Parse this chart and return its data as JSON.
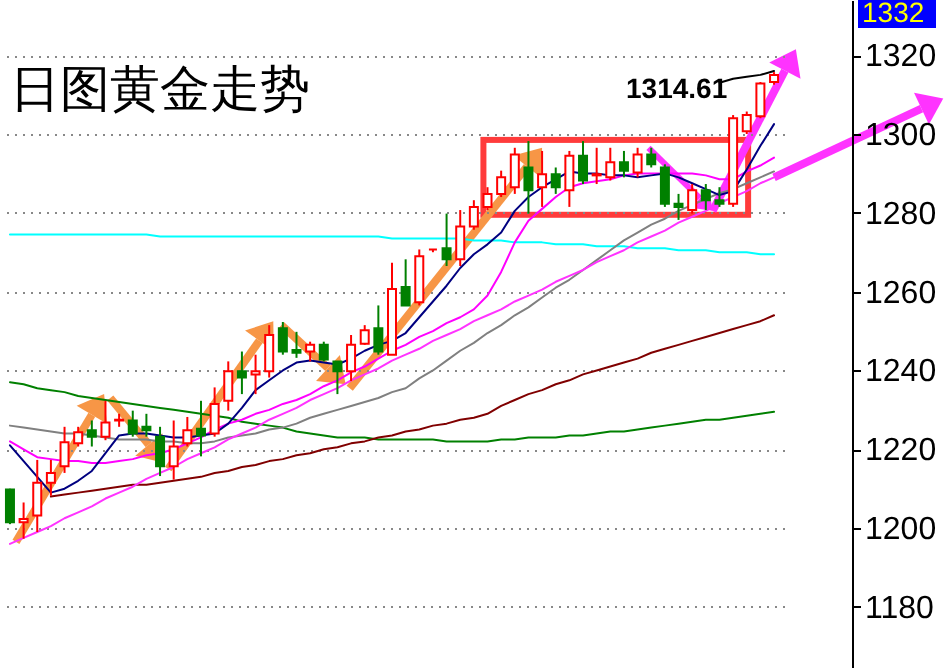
{
  "chart_data": {
    "type": "candlestick",
    "title": "日图黄金走势",
    "annotations": [
      "1314.61",
      "1332"
    ],
    "categories": [
      null,
      null,
      null,
      null,
      null,
      null,
      null,
      null,
      null,
      null,
      null,
      null,
      null,
      null,
      null,
      null,
      null,
      null,
      null,
      null,
      null,
      null,
      null,
      null,
      null,
      null,
      null,
      null,
      null,
      null,
      null,
      null,
      null,
      null,
      null,
      null,
      null,
      null,
      null,
      null,
      null,
      null,
      null,
      null,
      null,
      null,
      null,
      null,
      null,
      null,
      null,
      null,
      null,
      null,
      null,
      null,
      null
    ],
    "ohlc": [
      [
        1209.8,
        1210,
        1201,
        1201.5
      ],
      [
        1201.5,
        1206.5,
        1197.3,
        1202.3
      ],
      [
        1203.2,
        1217.3,
        1199,
        1211.5
      ],
      [
        1211.5,
        1217.3,
        1208.2,
        1214
      ],
      [
        1215.7,
        1225.7,
        1214,
        1221.8
      ],
      [
        1221.5,
        1225.7,
        1220.7,
        1224.3
      ],
      [
        1224.8,
        1227.3,
        1220.7,
        1223.2
      ],
      [
        1223.2,
        1232.3,
        1222.3,
        1226.8
      ],
      [
        1227.3,
        1229,
        1225.7,
        1227.5
      ],
      [
        1227.3,
        1229.8,
        1223.2,
        1224
      ],
      [
        1225.7,
        1229,
        1223.2,
        1224.8
      ],
      [
        1223.2,
        1225.7,
        1213.2,
        1215.7
      ],
      [
        1215.7,
        1227.3,
        1212.3,
        1220.7
      ],
      [
        1221.5,
        1228.2,
        1220.7,
        1224.8
      ],
      [
        1225.2,
        1232.3,
        1218.2,
        1223.5
      ],
      [
        1224,
        1235.7,
        1223.2,
        1231.5
      ],
      [
        1232.3,
        1242.3,
        1229.8,
        1239.8
      ],
      [
        1239.8,
        1244.8,
        1234,
        1238.2
      ],
      [
        1239,
        1244,
        1234,
        1239.8
      ],
      [
        1239.8,
        1251.5,
        1238.2,
        1249
      ],
      [
        1250.7,
        1252.3,
        1244,
        1244.8
      ],
      [
        1245.2,
        1249.8,
        1243.2,
        1244.5
      ],
      [
        1244.8,
        1247.3,
        1242.3,
        1246.5
      ],
      [
        1246.5,
        1247.3,
        1242.3,
        1242.8
      ],
      [
        1242.3,
        1242.3,
        1234,
        1239.8
      ],
      [
        1239.8,
        1249,
        1237.3,
        1246.5
      ],
      [
        1246.8,
        1251.5,
        1246.5,
        1250.2
      ],
      [
        1250.7,
        1256.5,
        1244,
        1244.8
      ],
      [
        1244,
        1267.3,
        1244,
        1260.7
      ],
      [
        1261.2,
        1268.2,
        1256.5,
        1256.5
      ],
      [
        1257.3,
        1270.7,
        1256.5,
        1269
      ],
      [
        1270.7,
        1270.7,
        1270,
        1270.7
      ],
      [
        1271,
        1279.8,
        1266.5,
        1268.2
      ],
      [
        1268.2,
        1280.7,
        1266.5,
        1276.5
      ],
      [
        1276.5,
        1283.2,
        1275.7,
        1281.5
      ],
      [
        1281.5,
        1286.5,
        1280.7,
        1284.8
      ],
      [
        1284.8,
        1290.7,
        1284,
        1289
      ],
      [
        1286.5,
        1296.5,
        1284.8,
        1294.8
      ],
      [
        1291.5,
        1298.2,
        1279.8,
        1285.7
      ],
      [
        1286.5,
        1295.7,
        1281.5,
        1289.8
      ],
      [
        1289.8,
        1291.5,
        1284.8,
        1286.5
      ],
      [
        1285.7,
        1295.7,
        1281.5,
        1294.5
      ],
      [
        1294.5,
        1298.2,
        1287.3,
        1288.2
      ],
      [
        1289.5,
        1296.5,
        1287.3,
        1289.8
      ],
      [
        1289,
        1296.5,
        1288.2,
        1292.8
      ],
      [
        1292.8,
        1295.7,
        1289,
        1290.7
      ],
      [
        1290.2,
        1296.5,
        1289,
        1294.8
      ],
      [
        1294.8,
        1296.5,
        1291.5,
        1292.3
      ],
      [
        1291.5,
        1292.3,
        1281.5,
        1282.3
      ],
      [
        1282.3,
        1284.8,
        1278.2,
        1281.5
      ],
      [
        1280.7,
        1287.3,
        1279.8,
        1285.7
      ],
      [
        1285.7,
        1287.3,
        1280.7,
        1283.2
      ],
      [
        1283.2,
        1286.5,
        1281.5,
        1282.3
      ],
      [
        1282.3,
        1304.8,
        1281.5,
        1304
      ],
      [
        1300.7,
        1305.7,
        1300,
        1304.8
      ],
      [
        1304.5,
        1313.2,
        1304,
        1312.8
      ],
      [
        1313.2,
        1315.7,
        1312.5,
        1315
      ]
    ],
    "colors": [
      "#008000",
      "#ff0000",
      "#ff0000",
      "#ff0000",
      "#ff0000",
      "#ff0000",
      "#008000",
      "#ff0000",
      "#ff0000",
      "#008000",
      "#008000",
      "#008000",
      "#ff0000",
      "#ff0000",
      "#008000",
      "#ff0000",
      "#ff0000",
      "#008000",
      "#ff0000",
      "#ff0000",
      "#008000",
      "#008000",
      "#ff0000",
      "#008000",
      "#008000",
      "#ff0000",
      "#ff0000",
      "#008000",
      "#ff0000",
      "#008000",
      "#ff0000",
      "#ff0000",
      "#008000",
      "#ff0000",
      "#ff0000",
      "#ff0000",
      "#ff0000",
      "#ff0000",
      "#008000",
      "#ff0000",
      "#008000",
      "#ff0000",
      "#008000",
      "#ff0000",
      "#ff0000",
      "#008000",
      "#ff0000",
      "#008000",
      "#008000",
      "#008000",
      "#ff0000",
      "#008000",
      "#008000",
      "#ff0000",
      "#ff0000",
      "#ff0000",
      "#ff0000"
    ],
    "series": [
      {
        "type": "line",
        "color": "#00ffff",
        "values": [
          1274.5,
          1274.5,
          1274.5,
          1274.5,
          1274.5,
          1274.5,
          1274.5,
          1274.5,
          1274.5,
          1274.5,
          1274.5,
          1274,
          1274,
          1274,
          1274,
          1274,
          1274,
          1274,
          1274,
          1274,
          1274,
          1274,
          1274,
          1274,
          1274,
          1274,
          1274,
          1274,
          1273.5,
          1273.5,
          1273.5,
          1273.5,
          1273.5,
          1273.5,
          1273,
          1273,
          1273,
          1272.5,
          1272.5,
          1272.5,
          1272,
          1272,
          1272,
          1271.5,
          1271.5,
          1271.5,
          1271,
          1271,
          1271,
          1270.5,
          1270.5,
          1270.5,
          1270,
          1270,
          1270,
          1269.5,
          1269.5
        ]
      },
      {
        "type": "line",
        "color": "#008000",
        "values": [
          1237,
          1236.5,
          1235.5,
          1235,
          1234.5,
          1233.5,
          1233,
          1232.5,
          1232,
          1231.5,
          1231,
          1230.5,
          1230,
          1229.5,
          1229,
          1228.5,
          1228,
          1227,
          1226.5,
          1226,
          1225.5,
          1224.5,
          1224,
          1223.5,
          1223,
          1223,
          1223,
          1222.5,
          1222.5,
          1222.5,
          1222.5,
          1222.5,
          1222,
          1222,
          1222,
          1222,
          1222.5,
          1222.5,
          1223,
          1223,
          1223,
          1223.5,
          1223.5,
          1224,
          1224.5,
          1224.5,
          1225,
          1225.5,
          1226,
          1226.5,
          1227,
          1227.5,
          1227.5,
          1228,
          1228.5,
          1229,
          1229.5
        ]
      },
      {
        "type": "line",
        "color": "#800000",
        "values": [
          null,
          null,
          null,
          1208,
          1208.5,
          1209,
          1209.5,
          1210,
          1210.5,
          1211,
          1211,
          1211.5,
          1212,
          1212.5,
          1213,
          1214,
          1214.5,
          1215.5,
          1216,
          1217,
          1217.5,
          1218.5,
          1219,
          1220,
          1220.5,
          1221.5,
          1222,
          1223,
          1223.5,
          1224.5,
          1225,
          1226,
          1226.5,
          1227.5,
          1228,
          1229,
          1231,
          1232.5,
          1234,
          1235,
          1236.5,
          1237.5,
          1239,
          1240,
          1241,
          1242,
          1243,
          1244.5,
          1245.5,
          1246.5,
          1247.5,
          1248.5,
          1249.5,
          1250.5,
          1251.5,
          1252.5,
          1254
        ]
      },
      {
        "type": "line",
        "color": "#808080",
        "values": [
          1226,
          1225.5,
          1225,
          1224.5,
          1224,
          1224,
          1223.5,
          1223,
          1222.5,
          1222.5,
          1222.5,
          1222,
          1222,
          1221.5,
          1221.5,
          1222,
          1223,
          1223.5,
          1224,
          1225,
          1225.5,
          1226.5,
          1228,
          1229,
          1230,
          1231,
          1232,
          1233,
          1234.5,
          1235.5,
          1238,
          1240,
          1242.5,
          1245,
          1247,
          1249.5,
          1251.5,
          1254,
          1256,
          1258.5,
          1261,
          1263,
          1265.5,
          1268,
          1270.5,
          1273,
          1275,
          1277,
          1278.5,
          1280.5,
          1282,
          1283.5,
          1285,
          1286,
          1287.5,
          1289,
          1290.5
        ]
      },
      {
        "type": "line",
        "color": "#ff00ff",
        "values": [
          1222,
          1220,
          1218,
          1217.5,
          1217,
          1217,
          1216.5,
          1216.5,
          1217,
          1217.5,
          1218.5,
          1219,
          1220,
          1221.5,
          1223,
          1225,
          1226.5,
          1227.5,
          1229,
          1230,
          1231.5,
          1232.5,
          1234,
          1236,
          1237.5,
          1239.5,
          1241,
          1243,
          1245,
          1246.5,
          1248.5,
          1250,
          1252,
          1253.5,
          1255.5,
          1259,
          1265,
          1272.5,
          1278,
          1281,
          1284,
          1286.5,
          1287.5,
          1288,
          1288.5,
          1289.5,
          1290,
          1290,
          1290,
          1290,
          1290,
          1289.5,
          1288.5,
          1288.5,
          1290.5,
          1292,
          1294
        ]
      },
      {
        "type": "line",
        "color": "#000080",
        "values": [
          1221,
          1217,
          1213,
          1209,
          1210,
          1212,
          1214.5,
          1219,
          1223.5,
          1224,
          1224,
          1223.5,
          1223,
          1223,
          1223.5,
          1224,
          1226.5,
          1230.5,
          1235,
          1237.5,
          1240,
          1242,
          1242.5,
          1242,
          1241.5,
          1243,
          1245,
          1246.5,
          1247.5,
          1249.5,
          1253.5,
          1257.5,
          1261.5,
          1266,
          1269.5,
          1272,
          1275,
          1280.5,
          1284,
          1286.5,
          1288.5,
          1290.5,
          1290,
          1290,
          1289.5,
          1289.5,
          1289,
          1289.5,
          1290,
          1289,
          1287.5,
          1286,
          1284.5,
          1285.5,
          1291,
          1297,
          1302.5
        ]
      },
      {
        "type": "line",
        "color": "#ff33ff",
        "values": [
          1196,
          1197.5,
          1199,
          1200.5,
          1202.5,
          1204,
          1205.5,
          1207.5,
          1209,
          1210.5,
          1212.5,
          1214,
          1215.5,
          1217.5,
          1219,
          1220.5,
          1222.5,
          1224,
          1225.5,
          1227.5,
          1229,
          1230.5,
          1232.5,
          1234,
          1235.5,
          1237.5,
          1239,
          1240.5,
          1242.5,
          1244,
          1245.5,
          1247.5,
          1249,
          1250.5,
          1252.5,
          1254,
          1255.5,
          1257.5,
          1259,
          1260.5,
          1262.5,
          1264,
          1265.5,
          1267.5,
          1269,
          1270.5,
          1272.5,
          1274,
          1275.5,
          1277.5,
          1279,
          1280.5,
          1282.5,
          1284,
          1285.5,
          1287.5,
          1289
        ]
      },
      {
        "type": "line",
        "color": "#000000",
        "values": [
          null,
          null,
          null,
          null,
          null,
          null,
          null,
          null,
          null,
          null,
          null,
          null,
          null,
          null,
          null,
          null,
          null,
          null,
          null,
          null,
          null,
          null,
          null,
          null,
          null,
          null,
          null,
          null,
          null,
          null,
          null,
          null,
          null,
          null,
          null,
          null,
          null,
          null,
          null,
          null,
          null,
          null,
          null,
          null,
          null,
          null,
          null,
          null,
          null,
          null,
          null,
          null,
          1313,
          1314,
          1314.5,
          1315,
          1316
        ]
      }
    ],
    "ylim": [
      1164.5,
      1334
    ],
    "yticks": [
      1180,
      1200,
      1220,
      1240,
      1260,
      1280,
      1300,
      1320
    ],
    "grid": "y",
    "tick_labels": "y"
  }
}
